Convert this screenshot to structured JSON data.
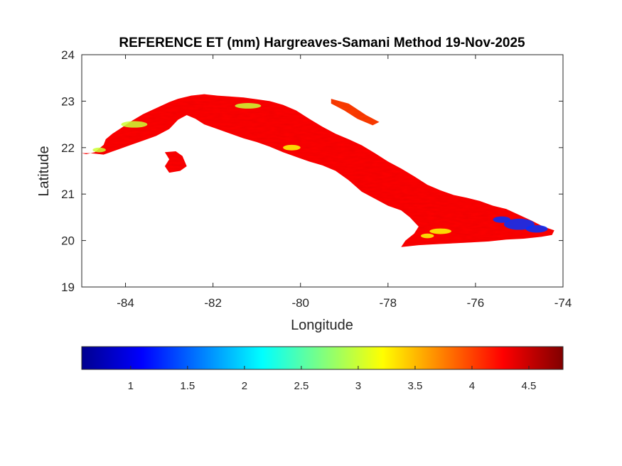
{
  "chart_data": {
    "type": "heatmap",
    "title": "REFERENCE ET (mm) Hargreaves-Samani Method  19-Nov-2025",
    "xlabel": "Longitude",
    "ylabel": "Latitude",
    "xlim": [
      -85,
      -74
    ],
    "ylim": [
      19,
      24
    ],
    "xticks": [
      -84,
      -82,
      -80,
      -78,
      -76,
      -74
    ],
    "yticks": [
      19,
      20,
      21,
      22,
      23,
      24
    ],
    "colormap": "jet",
    "colorbar": {
      "orientation": "horizontal",
      "location": "bottom",
      "range": [
        0.57,
        4.8
      ],
      "ticks": [
        1,
        1.5,
        2,
        2.5,
        3,
        3.5,
        4,
        4.5
      ]
    },
    "regions": [
      {
        "name": "Cuba main island",
        "approx_value": 4.2,
        "outline": [
          [
            -85.0,
            21.88
          ],
          [
            -84.9,
            21.86
          ],
          [
            -84.7,
            21.9
          ],
          [
            -84.6,
            21.98
          ],
          [
            -84.5,
            22.06
          ],
          [
            -84.45,
            22.18
          ],
          [
            -84.3,
            22.3
          ],
          [
            -84.1,
            22.42
          ],
          [
            -83.9,
            22.55
          ],
          [
            -83.6,
            22.72
          ],
          [
            -83.3,
            22.85
          ],
          [
            -83.0,
            22.98
          ],
          [
            -82.8,
            23.05
          ],
          [
            -82.5,
            23.12
          ],
          [
            -82.2,
            23.15
          ],
          [
            -81.9,
            23.12
          ],
          [
            -81.6,
            23.1
          ],
          [
            -81.3,
            23.08
          ],
          [
            -81.0,
            23.04
          ],
          [
            -80.7,
            23.0
          ],
          [
            -80.4,
            22.92
          ],
          [
            -80.1,
            22.8
          ],
          [
            -79.8,
            22.62
          ],
          [
            -79.5,
            22.45
          ],
          [
            -79.2,
            22.3
          ],
          [
            -78.9,
            22.18
          ],
          [
            -78.6,
            22.05
          ],
          [
            -78.3,
            21.88
          ],
          [
            -78.0,
            21.7
          ],
          [
            -77.7,
            21.55
          ],
          [
            -77.4,
            21.38
          ],
          [
            -77.1,
            21.2
          ],
          [
            -76.8,
            21.08
          ],
          [
            -76.5,
            20.98
          ],
          [
            -76.2,
            20.92
          ],
          [
            -75.9,
            20.85
          ],
          [
            -75.6,
            20.75
          ],
          [
            -75.3,
            20.68
          ],
          [
            -75.0,
            20.55
          ],
          [
            -74.7,
            20.42
          ],
          [
            -74.45,
            20.3
          ],
          [
            -74.2,
            20.22
          ],
          [
            -74.25,
            20.12
          ],
          [
            -74.5,
            20.08
          ],
          [
            -74.9,
            20.04
          ],
          [
            -75.3,
            20.02
          ],
          [
            -75.7,
            19.98
          ],
          [
            -76.1,
            19.96
          ],
          [
            -76.5,
            19.94
          ],
          [
            -76.9,
            19.92
          ],
          [
            -77.3,
            19.9
          ],
          [
            -77.7,
            19.86
          ],
          [
            -77.6,
            20.0
          ],
          [
            -77.4,
            20.15
          ],
          [
            -77.3,
            20.3
          ],
          [
            -77.5,
            20.5
          ],
          [
            -77.7,
            20.65
          ],
          [
            -78.0,
            20.75
          ],
          [
            -78.3,
            20.9
          ],
          [
            -78.6,
            21.05
          ],
          [
            -78.9,
            21.3
          ],
          [
            -79.2,
            21.5
          ],
          [
            -79.5,
            21.62
          ],
          [
            -79.8,
            21.7
          ],
          [
            -80.1,
            21.8
          ],
          [
            -80.4,
            21.9
          ],
          [
            -80.7,
            22.02
          ],
          [
            -81.0,
            22.12
          ],
          [
            -81.3,
            22.2
          ],
          [
            -81.6,
            22.3
          ],
          [
            -81.9,
            22.4
          ],
          [
            -82.2,
            22.5
          ],
          [
            -82.4,
            22.62
          ],
          [
            -82.6,
            22.7
          ],
          [
            -82.8,
            22.6
          ],
          [
            -83.0,
            22.4
          ],
          [
            -83.3,
            22.25
          ],
          [
            -83.6,
            22.15
          ],
          [
            -83.9,
            22.05
          ],
          [
            -84.2,
            21.95
          ],
          [
            -84.5,
            21.85
          ],
          [
            -84.8,
            21.88
          ],
          [
            -85.0,
            21.88
          ]
        ]
      },
      {
        "name": "Isla de la Juventud",
        "approx_value": 4.2,
        "outline": [
          [
            -83.1,
            21.9
          ],
          [
            -82.85,
            21.92
          ],
          [
            -82.7,
            21.82
          ],
          [
            -82.6,
            21.6
          ],
          [
            -82.75,
            21.5
          ],
          [
            -83.0,
            21.46
          ],
          [
            -83.1,
            21.6
          ],
          [
            -83.0,
            21.75
          ],
          [
            -83.1,
            21.9
          ]
        ]
      },
      {
        "name": "Cayo Coco area",
        "approx_value": 4.0,
        "outline": [
          [
            -79.3,
            23.05
          ],
          [
            -78.9,
            22.95
          ],
          [
            -78.5,
            22.7
          ],
          [
            -78.2,
            22.55
          ],
          [
            -78.35,
            22.48
          ],
          [
            -78.7,
            22.62
          ],
          [
            -79.0,
            22.8
          ],
          [
            -79.3,
            22.95
          ],
          [
            -79.3,
            23.05
          ]
        ]
      }
    ],
    "anomalies": [
      {
        "area": "eastern Cuba",
        "approx_value": 1.3
      },
      {
        "area": "northwest coast",
        "approx_value": 3.0
      },
      {
        "area": "central south",
        "approx_value": 3.2
      }
    ]
  }
}
